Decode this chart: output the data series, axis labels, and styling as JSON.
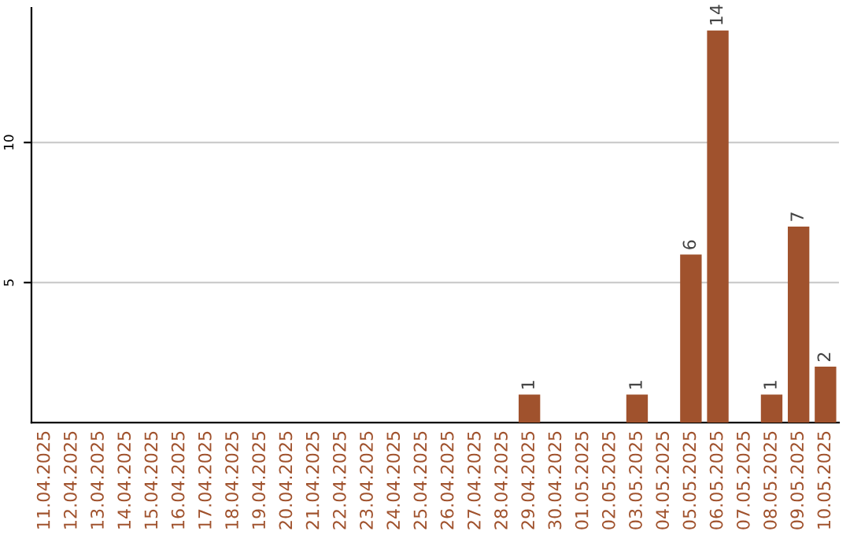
{
  "chart_data": {
    "type": "bar",
    "categories": [
      "11.04.2025",
      "12.04.2025",
      "13.04.2025",
      "14.04.2025",
      "15.04.2025",
      "16.04.2025",
      "17.04.2025",
      "18.04.2025",
      "19.04.2025",
      "20.04.2025",
      "21.04.2025",
      "22.04.2025",
      "23.04.2025",
      "24.04.2025",
      "25.04.2025",
      "26.04.2025",
      "27.04.2025",
      "28.04.2025",
      "29.04.2025",
      "30.04.2025",
      "01.05.2025",
      "02.05.2025",
      "03.05.2025",
      "04.05.2025",
      "05.05.2025",
      "06.05.2025",
      "07.05.2025",
      "08.05.2025",
      "09.05.2025",
      "10.05.2025"
    ],
    "values": [
      0,
      0,
      0,
      0,
      0,
      0,
      0,
      0,
      0,
      0,
      0,
      0,
      0,
      0,
      0,
      0,
      0,
      0,
      1,
      0,
      0,
      0,
      1,
      0,
      6,
      14,
      0,
      1,
      7,
      2
    ],
    "value_labels": [
      null,
      null,
      null,
      null,
      null,
      null,
      null,
      null,
      null,
      null,
      null,
      null,
      null,
      null,
      null,
      null,
      null,
      null,
      "1",
      null,
      null,
      null,
      "1",
      null,
      "6",
      "14",
      null,
      "1",
      "7",
      "2"
    ],
    "color": "#a0522d",
    "ylim": [
      0,
      14.8
    ],
    "yticks": [
      5,
      10
    ],
    "grid": "y"
  }
}
